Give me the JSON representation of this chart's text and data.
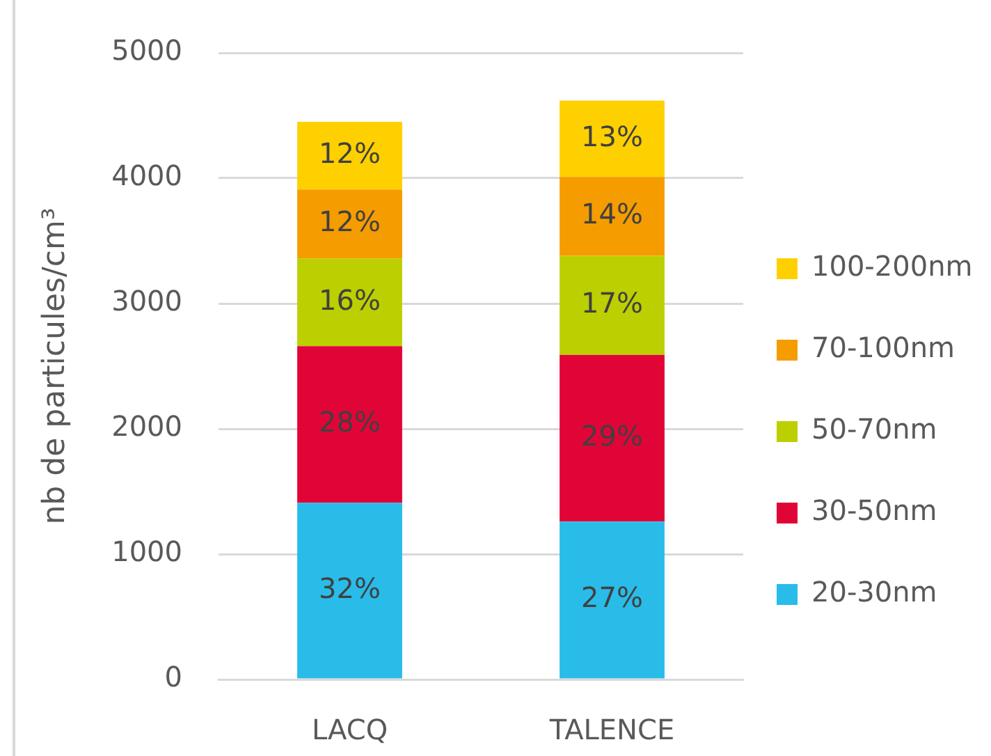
{
  "chart_data": {
    "type": "bar",
    "stacked": true,
    "ylabel": "nb de particules/cm³",
    "categories": [
      "LACQ",
      "TALENCE"
    ],
    "ylim": [
      0,
      5000
    ],
    "yticks": [
      0,
      1000,
      2000,
      3000,
      4000,
      5000
    ],
    "grid": "y",
    "legend": "right",
    "series": [
      {
        "name": "20-30nm",
        "color": "#29bce9",
        "values": [
          1410,
          1260
        ]
      },
      {
        "name": "30-50nm",
        "color": "#e10537",
        "values": [
          1250,
          1330
        ]
      },
      {
        "name": "50-70nm",
        "color": "#bccf00",
        "values": [
          700,
          790
        ]
      },
      {
        "name": "70-100nm",
        "color": "#f59c00",
        "values": [
          550,
          630
        ]
      },
      {
        "name": "100-200nm",
        "color": "#ffd000",
        "values": [
          540,
          610
        ]
      }
    ],
    "annotations": [
      "32%",
      "27%",
      "28%",
      "29%",
      "16%",
      "17%",
      "12%",
      "14%",
      "12%",
      "13%"
    ]
  }
}
